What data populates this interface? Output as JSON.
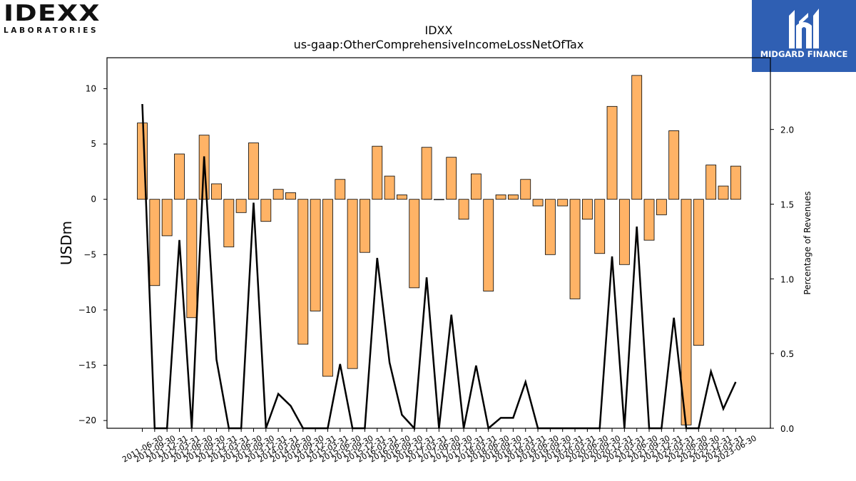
{
  "logos": {
    "left": {
      "wordmark": "IDEXX",
      "subtitle": "LABORATORIES"
    },
    "right": {
      "brand": "MIDGARD FINANCE",
      "background": "#2f5fb3"
    }
  },
  "chart_data": {
    "type": "bar",
    "title": "IDXX",
    "subtitle": "us-gaap:OtherComprehensiveIncomeLossNetOfTax",
    "ylabel": "USDm",
    "y2label": "Percentage of Revenues",
    "ylim": [
      -20.7,
      12.8
    ],
    "y2lim": [
      0.0,
      2.48
    ],
    "yticks": [
      10,
      5,
      0,
      -5,
      -10,
      -15,
      -20
    ],
    "y2ticks": [
      "0.0",
      "0.5",
      "1.0",
      "1.5",
      "2.0"
    ],
    "grid": false,
    "bar_color": "#ffb366",
    "line_color": "#000000",
    "categories": [
      "2011-06-30",
      "2011-09-30",
      "2011-12-31",
      "2012-03-31",
      "2012-06-30",
      "2012-09-30",
      "2012-12-31",
      "2013-03-31",
      "2013-06-30",
      "2013-09-30",
      "2013-12-31",
      "2014-03-31",
      "2014-06-30",
      "2014-09-30",
      "2014-12-31",
      "2015-03-31",
      "2015-06-30",
      "2015-09-30",
      "2015-12-31",
      "2016-03-31",
      "2016-06-30",
      "2016-09-30",
      "2016-12-31",
      "2017-03-31",
      "2017-06-30",
      "2017-09-30",
      "2017-12-31",
      "2018-03-31",
      "2018-06-30",
      "2018-09-30",
      "2018-12-31",
      "2019-03-31",
      "2019-06-30",
      "2019-09-30",
      "2019-12-31",
      "2020-03-31",
      "2020-06-30",
      "2020-09-30",
      "2020-12-31",
      "2021-03-31",
      "2021-06-30",
      "2021-09-30",
      "2021-12-31",
      "2022-03-31",
      "2022-06-30",
      "2022-09-30",
      "2022-12-31",
      "2023-03-31",
      "2023-06-30"
    ],
    "series": [
      {
        "axis": "left",
        "kind": "bar",
        "values": [
          6.9,
          -7.8,
          -3.3,
          4.1,
          -10.7,
          5.8,
          1.4,
          -4.3,
          -1.2,
          5.1,
          -2.0,
          0.9,
          0.6,
          -13.1,
          -10.1,
          -16.0,
          1.8,
          -15.3,
          -4.8,
          4.8,
          2.1,
          0.4,
          -8.0,
          4.7,
          0.0,
          3.8,
          -1.8,
          2.3,
          -8.3,
          0.4,
          0.4,
          1.8,
          -0.6,
          -5.0,
          -0.6,
          -9.0,
          -1.8,
          -4.9,
          8.4,
          -5.9,
          11.2,
          -3.7,
          -1.4,
          6.2,
          -20.4,
          -13.2,
          3.1,
          1.2,
          3.0
        ]
      },
      {
        "axis": "right",
        "kind": "line",
        "values": [
          2.17,
          0.0,
          0.0,
          1.26,
          0.0,
          1.82,
          0.46,
          0.0,
          0.0,
          1.51,
          0.0,
          0.23,
          0.15,
          0.0,
          0.0,
          0.0,
          0.43,
          0.0,
          0.0,
          1.14,
          0.44,
          0.09,
          0.0,
          1.01,
          0.0,
          0.76,
          0.0,
          0.42,
          0.0,
          0.07,
          0.07,
          0.31,
          0.0,
          0.0,
          0.0,
          0.0,
          0.0,
          0.0,
          1.15,
          0.0,
          1.35,
          0.0,
          0.0,
          0.74,
          0.0,
          0.0,
          0.38,
          0.13,
          0.31
        ]
      }
    ]
  }
}
